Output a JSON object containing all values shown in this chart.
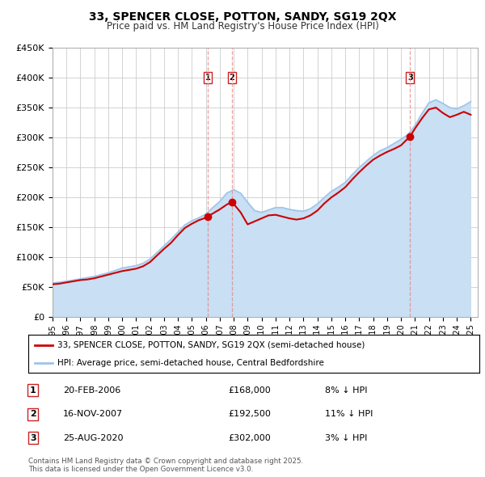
{
  "title": "33, SPENCER CLOSE, POTTON, SANDY, SG19 2QX",
  "subtitle": "Price paid vs. HM Land Registry's House Price Index (HPI)",
  "ylim": [
    0,
    450000
  ],
  "yticks": [
    0,
    50000,
    100000,
    150000,
    200000,
    250000,
    300000,
    350000,
    400000,
    450000
  ],
  "ytick_labels": [
    "£0",
    "£50K",
    "£100K",
    "£150K",
    "£200K",
    "£250K",
    "£300K",
    "£350K",
    "£400K",
    "£450K"
  ],
  "sale_dates": [
    2006.13,
    2007.88,
    2020.65
  ],
  "sale_prices": [
    168000,
    192500,
    302000
  ],
  "sale_labels": [
    "1",
    "2",
    "3"
  ],
  "vline_dates": [
    2006.13,
    2007.88,
    2020.65
  ],
  "legend_line1": "33, SPENCER CLOSE, POTTON, SANDY, SG19 2QX (semi-detached house)",
  "legend_line2": "HPI: Average price, semi-detached house, Central Bedfordshire",
  "table_rows": [
    [
      "1",
      "20-FEB-2006",
      "£168,000",
      "8% ↓ HPI"
    ],
    [
      "2",
      "16-NOV-2007",
      "£192,500",
      "11% ↓ HPI"
    ],
    [
      "3",
      "25-AUG-2020",
      "£302,000",
      "3% ↓ HPI"
    ]
  ],
  "footnote": "Contains HM Land Registry data © Crown copyright and database right 2025.\nThis data is licensed under the Open Government Licence v3.0.",
  "hpi_color": "#a0c4e8",
  "hpi_fill_color": "#c8dff4",
  "price_color": "#cc0000",
  "vline_color": "#e88888",
  "grid_color": "#cccccc",
  "label_box_color": "#cc2222",
  "hpi_data_years": [
    1995,
    1995.5,
    1996,
    1996.5,
    1997,
    1997.5,
    1998,
    1998.5,
    1999,
    1999.5,
    2000,
    2000.5,
    2001,
    2001.5,
    2002,
    2002.5,
    2003,
    2003.5,
    2004,
    2004.5,
    2005,
    2005.5,
    2006,
    2006.5,
    2007,
    2007.5,
    2008,
    2008.5,
    2009,
    2009.5,
    2010,
    2010.5,
    2011,
    2011.5,
    2012,
    2012.5,
    2013,
    2013.5,
    2014,
    2014.5,
    2015,
    2015.5,
    2016,
    2016.5,
    2017,
    2017.5,
    2018,
    2018.5,
    2019,
    2019.5,
    2020,
    2020.5,
    2021,
    2021.5,
    2022,
    2022.5,
    2023,
    2023.5,
    2024,
    2024.5,
    2025
  ],
  "hpi_data_values": [
    57000,
    58500,
    60000,
    62000,
    64000,
    66000,
    68000,
    71000,
    74000,
    78000,
    82000,
    84000,
    86000,
    90000,
    97000,
    108000,
    119000,
    130000,
    142000,
    154000,
    161000,
    166000,
    172000,
    183000,
    193000,
    207000,
    213000,
    207000,
    192000,
    178000,
    175000,
    179000,
    183000,
    183000,
    180000,
    178000,
    177000,
    181000,
    189000,
    200000,
    210000,
    217000,
    225000,
    238000,
    250000,
    260000,
    270000,
    278000,
    283000,
    290000,
    297000,
    305000,
    320000,
    340000,
    358000,
    363000,
    357000,
    350000,
    348000,
    353000,
    360000
  ],
  "price_data_years": [
    1995,
    1995.5,
    1996,
    1996.5,
    1997,
    1997.5,
    1998,
    1998.5,
    1999,
    1999.5,
    2000,
    2000.5,
    2001,
    2001.5,
    2002,
    2002.5,
    2003,
    2003.5,
    2004,
    2004.5,
    2005,
    2005.5,
    2006,
    2006.13,
    2007,
    2007.5,
    2007.88,
    2008.5,
    2009,
    2009.5,
    2010,
    2010.5,
    2011,
    2011.5,
    2012,
    2012.5,
    2013,
    2013.5,
    2014,
    2014.5,
    2015,
    2015.5,
    2016,
    2016.5,
    2017,
    2017.5,
    2018,
    2018.5,
    2019,
    2019.5,
    2020,
    2020.65,
    2021,
    2021.5,
    2022,
    2022.5,
    2023,
    2023.5,
    2024,
    2024.5,
    2025
  ],
  "price_data_values": [
    55000,
    56000,
    58000,
    60000,
    62000,
    63000,
    65000,
    68000,
    71000,
    74000,
    77000,
    79000,
    81000,
    85000,
    92000,
    103000,
    114000,
    124000,
    137000,
    149000,
    156000,
    162000,
    166000,
    168000,
    180000,
    188000,
    192500,
    175000,
    155000,
    160000,
    165000,
    170000,
    171000,
    168000,
    165000,
    163000,
    165000,
    170000,
    178000,
    190000,
    200000,
    208000,
    217000,
    230000,
    242000,
    253000,
    263000,
    270000,
    276000,
    281000,
    287000,
    302000,
    315000,
    332000,
    347000,
    350000,
    341000,
    334000,
    338000,
    343000,
    338000
  ],
  "xmin": 1995,
  "xmax": 2025.5
}
